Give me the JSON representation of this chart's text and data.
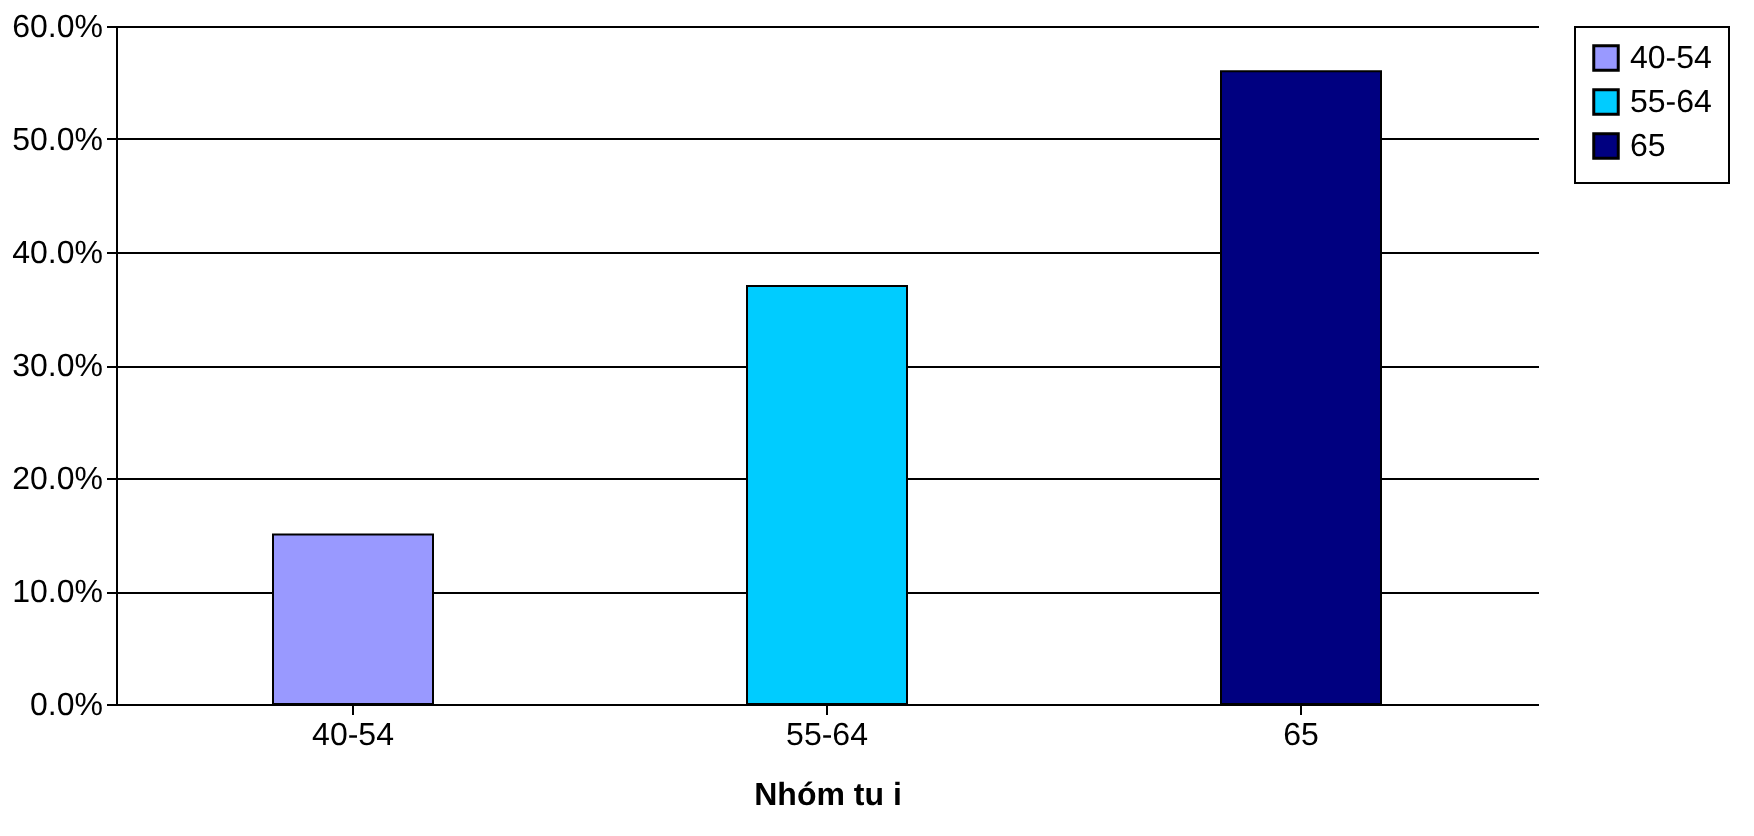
{
  "chart_data": {
    "type": "bar",
    "xlabel": "Nhóm tu i",
    "categories": [
      "40-54",
      "55-64",
      "65"
    ],
    "series": [
      {
        "name": "40-54",
        "color": "#9999ff",
        "values": [
          15,
          null,
          null
        ]
      },
      {
        "name": "55-64",
        "color": "#00ccff",
        "values": [
          null,
          37,
          null
        ]
      },
      {
        "name": "65",
        "color": "#000080",
        "values": [
          null,
          null,
          56
        ]
      }
    ],
    "ylim": [
      0,
      60
    ],
    "yticks": [
      {
        "value": 0,
        "label": "0.0%"
      },
      {
        "value": 10,
        "label": "10.0%"
      },
      {
        "value": 20,
        "label": "20.0%"
      },
      {
        "value": 30,
        "label": "30.0%"
      },
      {
        "value": 40,
        "label": "40.0%"
      },
      {
        "value": 50,
        "label": "50.0%"
      },
      {
        "value": 60,
        "label": "60.0%"
      }
    ],
    "grid": "y",
    "legend": "right"
  }
}
